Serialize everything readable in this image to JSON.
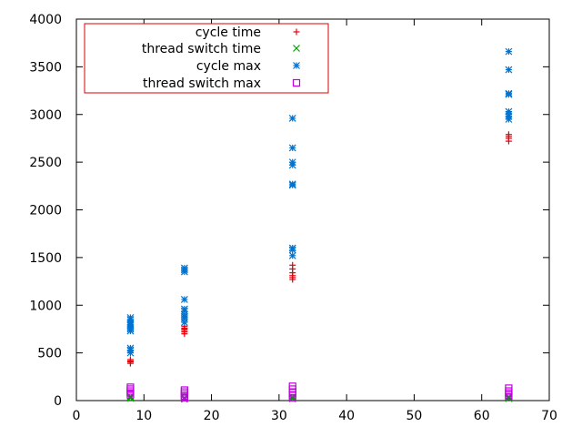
{
  "chart_data": {
    "type": "scatter",
    "title": "",
    "xlabel": "",
    "ylabel": "",
    "xlim": [
      0,
      70
    ],
    "ylim": [
      0,
      4000
    ],
    "x_ticks": [
      "0",
      "10",
      "20",
      "30",
      "40",
      "50",
      "60",
      "70"
    ],
    "y_ticks": [
      "0",
      "500",
      "1000",
      "1500",
      "2000",
      "2500",
      "3000",
      "3500",
      "4000"
    ],
    "grid": false,
    "legend_position": "top-left",
    "legend_border_color": "#e00000",
    "series": [
      {
        "name": "cycle time",
        "marker": "plus",
        "color": "#e8000b",
        "points": [
          [
            8,
            390
          ],
          [
            8,
            405
          ],
          [
            8,
            415
          ],
          [
            8,
            430
          ],
          [
            16,
            700
          ],
          [
            16,
            720
          ],
          [
            16,
            735
          ],
          [
            16,
            750
          ],
          [
            16,
            760
          ],
          [
            16,
            780
          ],
          [
            32,
            1270
          ],
          [
            32,
            1290
          ],
          [
            32,
            1310
          ],
          [
            32,
            1340
          ],
          [
            32,
            1380
          ],
          [
            32,
            1420
          ],
          [
            64,
            2720
          ],
          [
            64,
            2750
          ],
          [
            64,
            2770
          ],
          [
            64,
            2790
          ]
        ]
      },
      {
        "name": "thread switch time",
        "marker": "cross",
        "color": "#00a000",
        "points": [
          [
            8,
            25
          ],
          [
            8,
            35
          ],
          [
            8,
            45
          ],
          [
            16,
            15
          ],
          [
            16,
            22
          ],
          [
            16,
            30
          ],
          [
            32,
            20
          ],
          [
            32,
            28
          ],
          [
            32,
            38
          ],
          [
            64,
            22
          ],
          [
            64,
            30
          ],
          [
            64,
            40
          ]
        ]
      },
      {
        "name": "cycle max",
        "marker": "star",
        "color": "#0073d0",
        "points": [
          [
            8,
            500
          ],
          [
            8,
            530
          ],
          [
            8,
            550
          ],
          [
            8,
            730
          ],
          [
            8,
            750
          ],
          [
            8,
            770
          ],
          [
            8,
            790
          ],
          [
            8,
            800
          ],
          [
            8,
            820
          ],
          [
            8,
            850
          ],
          [
            8,
            870
          ],
          [
            16,
            820
          ],
          [
            16,
            860
          ],
          [
            16,
            880
          ],
          [
            16,
            900
          ],
          [
            16,
            940
          ],
          [
            16,
            960
          ],
          [
            16,
            1060
          ],
          [
            16,
            1350
          ],
          [
            16,
            1370
          ],
          [
            16,
            1390
          ],
          [
            32,
            1520
          ],
          [
            32,
            1580
          ],
          [
            32,
            1600
          ],
          [
            32,
            2260
          ],
          [
            32,
            2270
          ],
          [
            32,
            2470
          ],
          [
            32,
            2500
          ],
          [
            32,
            2650
          ],
          [
            32,
            2960
          ],
          [
            64,
            2950
          ],
          [
            64,
            2980
          ],
          [
            64,
            3000
          ],
          [
            64,
            3030
          ],
          [
            64,
            3210
          ],
          [
            64,
            3220
          ],
          [
            64,
            3470
          ],
          [
            64,
            3660
          ]
        ]
      },
      {
        "name": "thread switch max",
        "marker": "square",
        "color": "#c000e0",
        "points": [
          [
            8,
            60
          ],
          [
            8,
            80
          ],
          [
            8,
            100
          ],
          [
            8,
            120
          ],
          [
            8,
            140
          ],
          [
            16,
            30
          ],
          [
            16,
            50
          ],
          [
            16,
            70
          ],
          [
            16,
            90
          ],
          [
            16,
            110
          ],
          [
            32,
            30
          ],
          [
            32,
            60
          ],
          [
            32,
            90
          ],
          [
            32,
            120
          ],
          [
            32,
            150
          ],
          [
            64,
            40
          ],
          [
            64,
            60
          ],
          [
            64,
            80
          ],
          [
            64,
            100
          ],
          [
            64,
            130
          ]
        ]
      }
    ]
  }
}
